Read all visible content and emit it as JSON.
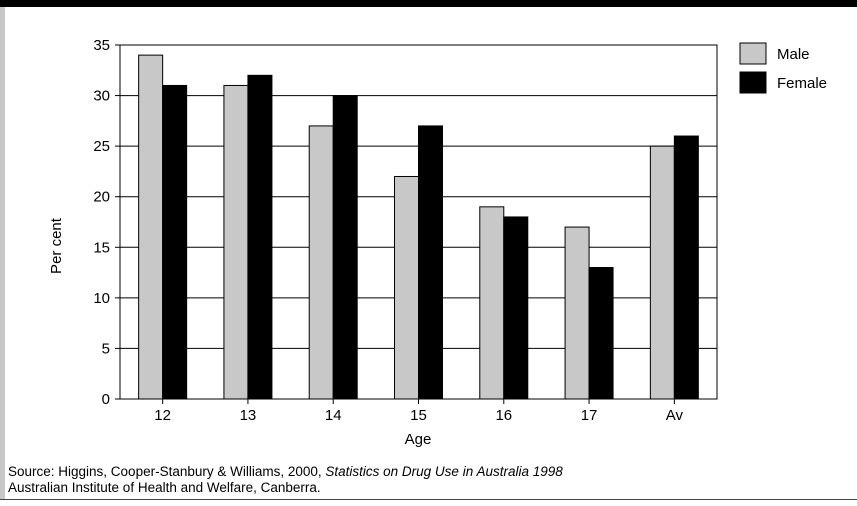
{
  "chart_data": {
    "type": "bar",
    "title": "",
    "xlabel": "Age",
    "ylabel": "Per cent",
    "categories": [
      "12",
      "13",
      "14",
      "15",
      "16",
      "17",
      "Av"
    ],
    "series": [
      {
        "name": "Male",
        "values": [
          34,
          31,
          27,
          22,
          19,
          17,
          25
        ],
        "color": "#c8c8c8"
      },
      {
        "name": "Female",
        "values": [
          31,
          32,
          30,
          27,
          18,
          13,
          26
        ],
        "color": "#000000"
      }
    ],
    "ylim": [
      0,
      35
    ],
    "yticks": [
      0,
      5,
      10,
      15,
      20,
      25,
      30,
      35
    ],
    "grid": true,
    "legend_position": "top-right"
  },
  "source": {
    "prefix": "Source: Higgins, Cooper-Stanbury & Williams, 2000, ",
    "publication": "Statistics on Drug Use in Australia 1998",
    "line2": "Australian Institute of Health and Welfare, Canberra."
  }
}
